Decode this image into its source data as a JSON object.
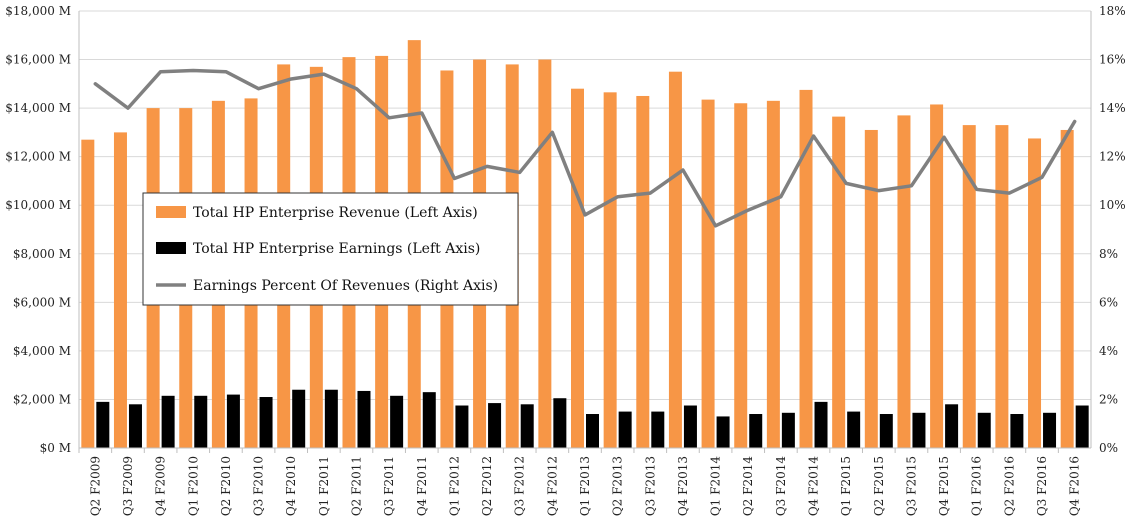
{
  "chart_data": {
    "type": "bar",
    "categories": [
      "Q2 F2009",
      "Q3 F2009",
      "Q4 F2009",
      "Q1 F2010",
      "Q2 F2010",
      "Q3 F2010",
      "Q4 F2010",
      "Q1 F2011",
      "Q2 F2011",
      "Q3 F2011",
      "Q4 F2011",
      "Q1 F2012",
      "Q2 F2012",
      "Q3 F2012",
      "Q4 F2012",
      "Q1 F2013",
      "Q2 F2013",
      "Q3 F2013",
      "Q4 F2013",
      "Q1 F2014",
      "Q2 F2014",
      "Q3 F2014",
      "Q4 F2014",
      "Q1 F2015",
      "Q2 F2015",
      "Q3 F2015",
      "Q4 F2015",
      "Q1 F2016",
      "Q2 F2016",
      "Q3 F2016",
      "Q4 F2016"
    ],
    "series": [
      {
        "name": "Total HP Enterprise Revenue (Left Axis)",
        "type": "bar",
        "axis": "left",
        "color": "#F79646",
        "values": [
          12700,
          13000,
          14000,
          14000,
          14300,
          14400,
          15800,
          15700,
          16100,
          16150,
          16800,
          15550,
          16000,
          15800,
          16000,
          14800,
          14650,
          14500,
          15500,
          14350,
          14200,
          14300,
          14750,
          13650,
          13100,
          13700,
          14150,
          13300,
          13300,
          12750,
          13100
        ]
      },
      {
        "name": "Total HP Enterprise Earnings (Left Axis)",
        "type": "bar",
        "axis": "left",
        "color": "#000000",
        "values": [
          1900,
          1800,
          2150,
          2150,
          2200,
          2100,
          2400,
          2400,
          2350,
          2150,
          2300,
          1750,
          1850,
          1800,
          2050,
          1400,
          1500,
          1500,
          1750,
          1300,
          1400,
          1450,
          1900,
          1500,
          1400,
          1450,
          1800,
          1450,
          1400,
          1450,
          1750
        ]
      },
      {
        "name": "Earnings Percent Of Revenues (Right Axis)",
        "type": "line",
        "axis": "right",
        "color": "#808080",
        "values": [
          15.0,
          14.0,
          15.5,
          15.55,
          15.5,
          14.8,
          15.2,
          15.4,
          14.8,
          13.6,
          13.8,
          11.1,
          11.6,
          11.35,
          13.0,
          9.6,
          10.35,
          10.5,
          11.45,
          9.15,
          9.8,
          10.35,
          12.85,
          10.9,
          10.6,
          10.8,
          12.8,
          10.65,
          10.5,
          11.15,
          13.45
        ]
      }
    ],
    "y_left": {
      "ylim": [
        0,
        18000
      ],
      "ticks": [
        0,
        2000,
        4000,
        6000,
        8000,
        10000,
        12000,
        14000,
        16000,
        18000
      ],
      "tick_labels": [
        "$0 M",
        "$2,000 M",
        "$4,000 M",
        "$6,000 M",
        "$8,000 M",
        "$10,000 M",
        "$12,000 M",
        "$14,000 M",
        "$16,000 M",
        "$18,000 M"
      ]
    },
    "y_right": {
      "ylim": [
        0,
        18
      ],
      "ticks": [
        0,
        2,
        4,
        6,
        8,
        10,
        12,
        14,
        16,
        18
      ],
      "tick_labels": [
        "0%",
        "2%",
        "4%",
        "6%",
        "8%",
        "10%",
        "12%",
        "14%",
        "16%",
        "18%"
      ]
    },
    "grid": true,
    "legend_position": "middle-left",
    "title": "",
    "xlabel": "",
    "ylabel": ""
  }
}
